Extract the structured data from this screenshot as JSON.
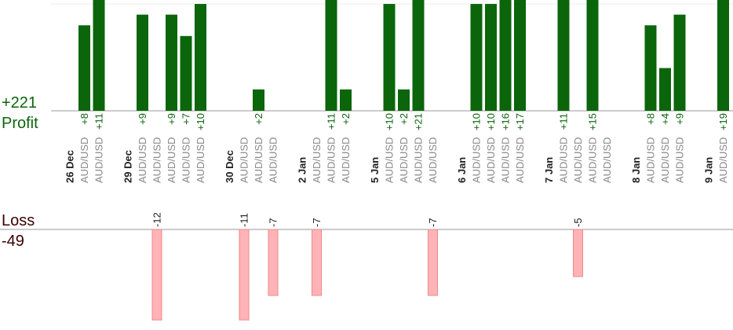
{
  "chart_data": {
    "type": "profit-loss-bars",
    "profit_total": 221,
    "profit_total_label": "+221",
    "profit_title": "Profit",
    "loss_title": "Loss",
    "loss_total": -49,
    "profit_ylim": [
      0,
      10.37
    ],
    "loss_ylim": [
      -9.6,
      0
    ],
    "grid_y": [
      10
    ],
    "profit_color": "#0b650b",
    "loss_color": "#ffb3b6",
    "days": [
      {
        "date": "26 Dec",
        "trades": [
          {
            "symbol": "AUD/USD",
            "value": 8,
            "value_label": "+8"
          },
          {
            "symbol": "AUD/USD",
            "value": 11,
            "value_label": "+11"
          }
        ]
      },
      {
        "date": "29 Dec",
        "trades": [
          {
            "symbol": "AUD/USD",
            "value": 9,
            "value_label": "+9"
          },
          {
            "symbol": "AUD/USD",
            "value": -12
          },
          {
            "symbol": "AUD/USD",
            "value": 9,
            "value_label": "+9"
          },
          {
            "symbol": "AUD/USD",
            "value": 7,
            "value_label": "+7"
          },
          {
            "symbol": "AUD/USD",
            "value": 10,
            "value_label": "+10"
          }
        ]
      },
      {
        "date": "30 Dec",
        "trades": [
          {
            "symbol": "AUD/USD",
            "value": -11
          },
          {
            "symbol": "AUD/USD",
            "value": 2,
            "value_label": "+2"
          },
          {
            "symbol": "AUD/USD",
            "value": -7
          }
        ]
      },
      {
        "date": "2 Jan",
        "trades": [
          {
            "symbol": "AUD/USD",
            "value": -7
          },
          {
            "symbol": "AUD/USD",
            "value": 11,
            "value_label": "+11"
          },
          {
            "symbol": "AUD/USD",
            "value": 2,
            "value_label": "+2"
          }
        ]
      },
      {
        "date": "5 Jan",
        "trades": [
          {
            "symbol": "AUD/USD",
            "value": 10,
            "value_label": "+10"
          },
          {
            "symbol": "AUD/USD",
            "value": 2,
            "value_label": "+2"
          },
          {
            "symbol": "AUD/USD",
            "value": 21,
            "value_label": "+21"
          },
          {
            "symbol": "AUD/USD",
            "value": -7
          }
        ]
      },
      {
        "date": "6 Jan",
        "trades": [
          {
            "symbol": "AUD/USD",
            "value": 10,
            "value_label": "+10"
          },
          {
            "symbol": "AUD/USD",
            "value": 10,
            "value_label": "+10"
          },
          {
            "symbol": "AUD/USD",
            "value": 16,
            "value_label": "+16"
          },
          {
            "symbol": "AUD/USD",
            "value": 17,
            "value_label": "+17"
          }
        ]
      },
      {
        "date": "7 Jan",
        "trades": [
          {
            "symbol": "AUD/USD",
            "value": 11,
            "value_label": "+11"
          },
          {
            "symbol": "AUD/USD",
            "value": -5
          },
          {
            "symbol": "AUD/USD",
            "value": 15,
            "value_label": "+15"
          },
          {
            "symbol": "AUD/USD",
            "value": null
          }
        ]
      },
      {
        "date": "8 Jan",
        "trades": [
          {
            "symbol": "AUD/USD",
            "value": 8,
            "value_label": "+8"
          },
          {
            "symbol": "AUD/USD",
            "value": 4,
            "value_label": "+4"
          },
          {
            "symbol": "AUD/USD",
            "value": 9,
            "value_label": "+9"
          }
        ]
      },
      {
        "date": "9 Jan",
        "trades": [
          {
            "symbol": "AUD/USD",
            "value": 19,
            "value_label": "+19"
          }
        ]
      }
    ]
  }
}
